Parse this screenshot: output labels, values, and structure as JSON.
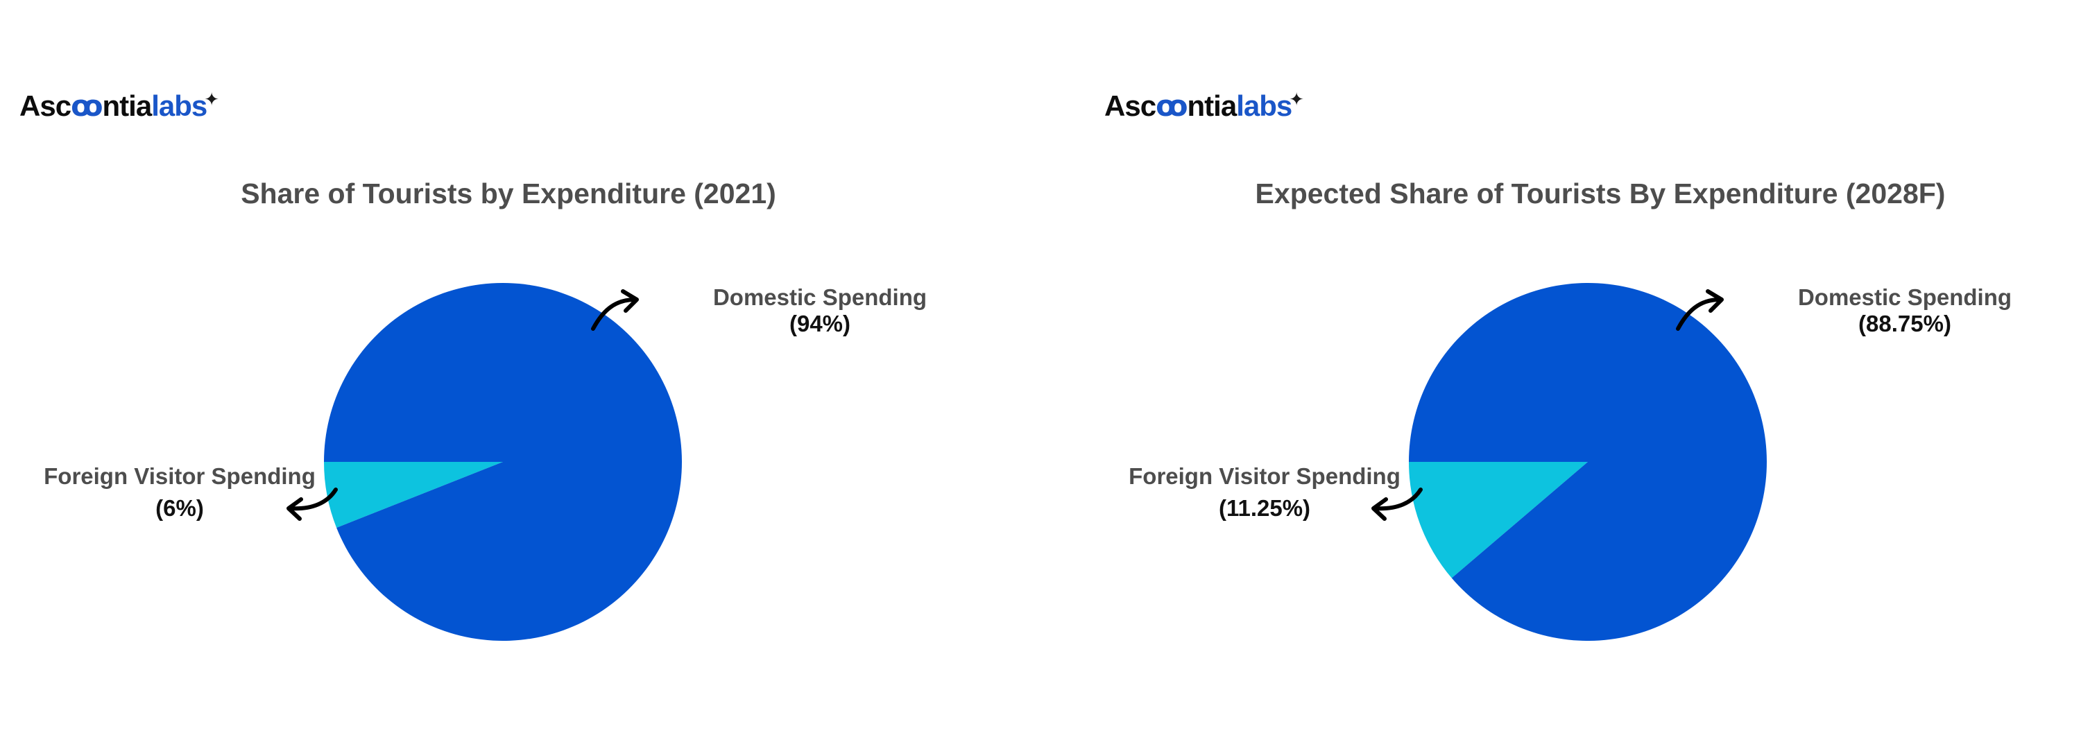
{
  "logo": {
    "part_dark": "Asc",
    "part_loop": "ꝏ",
    "part_dark2": "ntia",
    "part_blue": "labs",
    "spark": "✦"
  },
  "colors": {
    "domestic": "#0354d1",
    "foreign": "#0dc3df"
  },
  "chart_data": [
    {
      "type": "pie",
      "title": "Share of Tourists by Expenditure (2021)",
      "slices": [
        {
          "label": "Domestic Spending",
          "value": 94,
          "value_label": "(94%)",
          "color": "#0354d1"
        },
        {
          "label": "Foreign Visitor Spending",
          "value": 6,
          "value_label": "(6%)",
          "color": "#0dc3df"
        }
      ]
    },
    {
      "type": "pie",
      "title": "Expected Share of Tourists By Expenditure (2028F)",
      "slices": [
        {
          "label": "Domestic Spending",
          "value": 88.75,
          "value_label": "(88.75%)",
          "color": "#0354d1"
        },
        {
          "label": "Foreign Visitor Spending",
          "value": 11.25,
          "value_label": "(11.25%)",
          "color": "#0dc3df"
        }
      ]
    }
  ]
}
